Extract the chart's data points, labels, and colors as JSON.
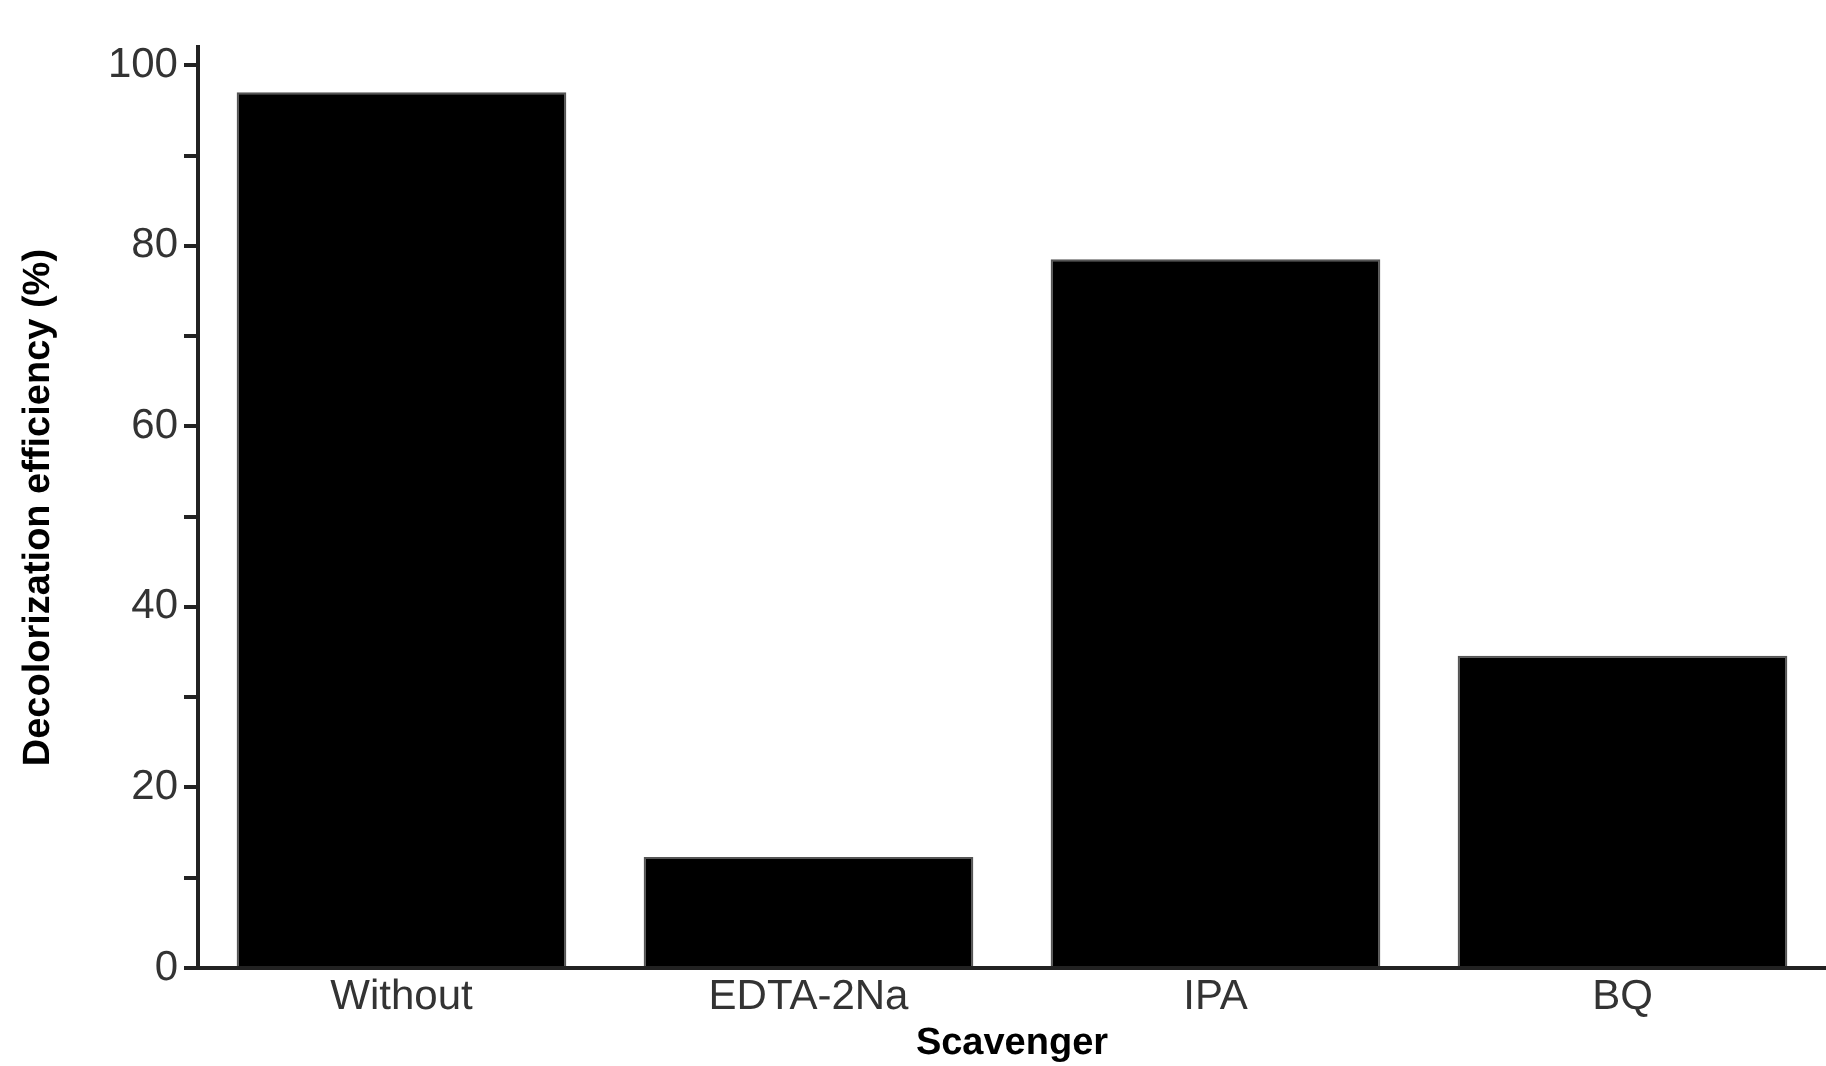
{
  "chart_data": {
    "type": "bar",
    "xlabel": "Scavenger",
    "ylabel": "Decolorization efficiency (%)",
    "categories": [
      "Without",
      "EDTA-2Na",
      "IPA",
      "BQ"
    ],
    "values": [
      97,
      12.3,
      78.5,
      34.6
    ],
    "color": "#000000",
    "ylim": [
      0,
      102
    ],
    "yticks": [
      0,
      {
        "value": 10,
        "label": null
      },
      20,
      {
        "value": 30,
        "label": null
      },
      40,
      {
        "value": 50,
        "label": null
      },
      60,
      {
        "value": 70,
        "label": null
      },
      80,
      {
        "value": 90,
        "label": null
      },
      100
    ],
    "grid": false,
    "legend": false
  }
}
